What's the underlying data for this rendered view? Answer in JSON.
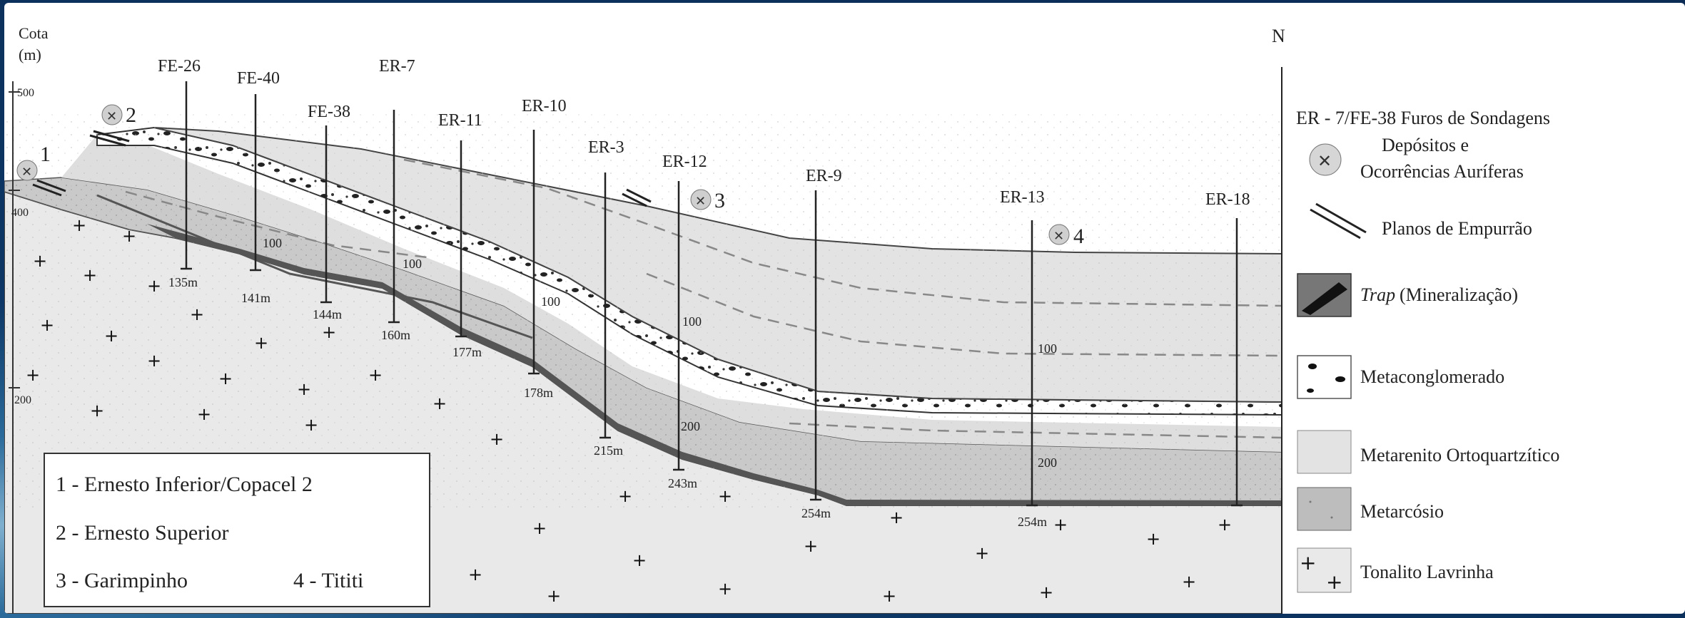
{
  "diagram": {
    "axis_title": "Cota",
    "axis_unit": "(m)",
    "axis_ticks": [
      "500",
      "400",
      "200"
    ],
    "north": "N",
    "drill_holes": [
      {
        "name": "FE-26",
        "depth": "135m"
      },
      {
        "name": "FE-40",
        "depth": "141m"
      },
      {
        "name": "FE-38",
        "depth": "144m"
      },
      {
        "name": "ER-7",
        "depth": "160m"
      },
      {
        "name": "ER-11",
        "depth": "177m"
      },
      {
        "name": "ER-10",
        "depth": "178m"
      },
      {
        "name": "ER-3",
        "depth": "215m"
      },
      {
        "name": "ER-12",
        "depth": "243m"
      },
      {
        "name": "ER-9",
        "depth": "254m"
      },
      {
        "name": "ER-13",
        "depth": "254m"
      },
      {
        "name": "ER-18",
        "depth": ""
      }
    ],
    "contour_labels": [
      "100",
      "100",
      "100",
      "100",
      "200",
      "100",
      "200"
    ],
    "deposit_numbers": [
      "1",
      "2",
      "3",
      "4"
    ],
    "key_box": [
      "1 - Ernesto Inferior/Copacel 2",
      "2 - Ernesto Superior",
      "3 - Garimpinho",
      "4 - Tititi"
    ]
  },
  "legend": {
    "drill_title": "ER - 7/FE-38   Furos de Sondagens",
    "deposits_line1": "Depósitos e",
    "deposits_line2": "Ocorrências Auríferas",
    "thrust": "Planos de Empurrão",
    "trap_italic": "Trap",
    "trap_rest": "(Mineralização)",
    "conglomerate": "Metaconglomerado",
    "metarenito": "Metarenito Ortoquartzítico",
    "metarcosio": "Metarcósio",
    "tonalito": "Tonalito Lavrinha"
  }
}
